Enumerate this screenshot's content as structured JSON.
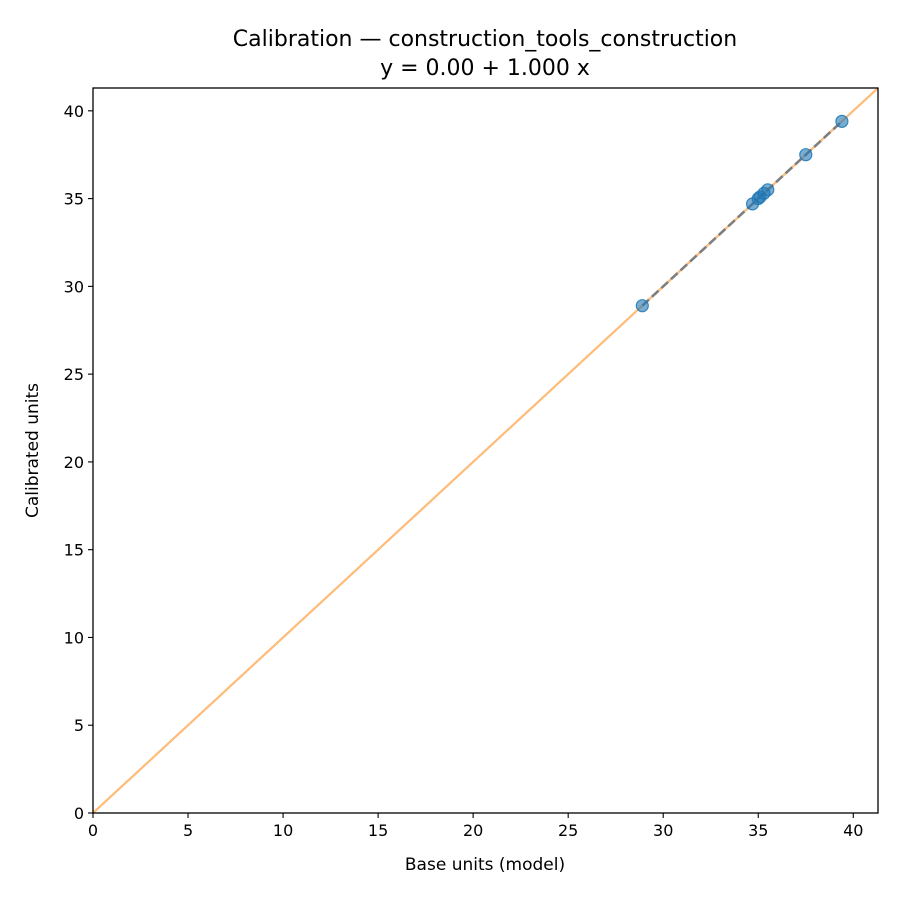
{
  "chart_data": {
    "type": "scatter",
    "title": "Calibration — construction_tools_construction",
    "subtitle": "y = 0.00 + 1.000 x",
    "xlabel": "Base units (model)",
    "ylabel": "Calibrated units",
    "xlim": [
      0,
      41.3
    ],
    "ylim": [
      0,
      41.3
    ],
    "xticks": [
      "0",
      "5",
      "10",
      "15",
      "20",
      "25",
      "30",
      "35",
      "40"
    ],
    "yticks": [
      "0",
      "5",
      "10",
      "15",
      "20",
      "25",
      "30",
      "35",
      "40"
    ],
    "grid": false,
    "points": {
      "x": [
        28.9,
        34.7,
        35.0,
        35.1,
        35.3,
        35.5,
        37.5,
        39.4
      ],
      "y": [
        28.9,
        34.7,
        35.0,
        35.1,
        35.3,
        35.5,
        37.5,
        39.4
      ]
    },
    "identity_line": {
      "x": [
        0,
        41.3
      ],
      "y": [
        0,
        41.3
      ]
    },
    "fit_line": {
      "intercept": 0.0,
      "slope": 1.0,
      "x_range": [
        28.9,
        39.4
      ]
    },
    "colors": {
      "points": "#1f77b4",
      "identity_line": "#ffbb78",
      "fit_line": "#7f7f7f"
    }
  }
}
